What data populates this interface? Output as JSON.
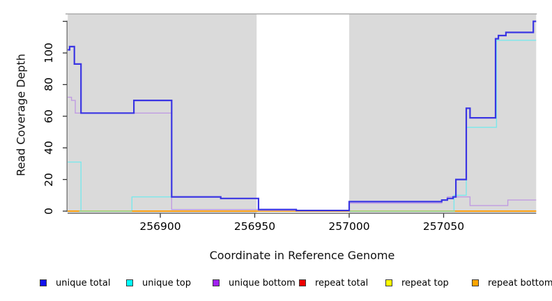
{
  "chart_data": {
    "type": "line",
    "subtype": "step-after",
    "title": "",
    "xlabel": "Coordinate in Reference Genome",
    "ylabel": "Read Coverage Depth",
    "xlim": [
      256851,
      257099
    ],
    "ylim": [
      0,
      126
    ],
    "grid": false,
    "legend_position": "bottom",
    "x_ticks": [
      256900,
      256950,
      257000,
      257050
    ],
    "x_tick_labels": [
      "256900",
      "256950",
      "257000",
      "257050"
    ],
    "y_ticks": [
      0,
      20,
      40,
      60,
      80,
      100
    ],
    "y_tick_labels": [
      "0",
      "20",
      "40",
      "60",
      "80",
      "100"
    ],
    "y_tick_unlabeled": 120,
    "background_bands": {
      "shade_color": "#DADADA",
      "shaded": [
        [
          256851,
          256951
        ],
        [
          257000,
          257099
        ]
      ],
      "unshaded": [
        [
          256951,
          257000
        ]
      ]
    },
    "series": [
      {
        "name": "unique total",
        "legend_color": "#1111EE",
        "line_color": "#3A35E3",
        "line_width": 2.2,
        "points": [
          [
            256851,
            102
          ],
          [
            256852,
            104
          ],
          [
            256854.5,
            93
          ],
          [
            256858,
            62
          ],
          [
            256886,
            70
          ],
          [
            256906,
            9
          ],
          [
            256932,
            8
          ],
          [
            256952,
            1
          ],
          [
            256972,
            0.4
          ],
          [
            257000,
            6
          ],
          [
            257049,
            7
          ],
          [
            257052,
            8
          ],
          [
            257055,
            9
          ],
          [
            257056.5,
            20
          ],
          [
            257062,
            65
          ],
          [
            257064,
            59
          ],
          [
            257077.5,
            109
          ],
          [
            257079,
            111
          ],
          [
            257083,
            113
          ],
          [
            257097.5,
            120
          ],
          [
            257099,
            120
          ]
        ]
      },
      {
        "name": "unique top",
        "legend_color": "#00FFFF",
        "line_color": "#7AE8EC",
        "line_width": 1.4,
        "points": [
          [
            256851,
            31
          ],
          [
            256858,
            0
          ],
          [
            256885,
            9
          ],
          [
            256932,
            8
          ],
          [
            256952,
            0
          ],
          [
            257055.5,
            10
          ],
          [
            257062,
            53
          ],
          [
            257078,
            108
          ],
          [
            257099,
            108
          ]
        ]
      },
      {
        "name": "unique bottom",
        "legend_color": "#A020F0",
        "line_color": "#C09BE2",
        "line_width": 1.4,
        "points": [
          [
            256851,
            72
          ],
          [
            256853,
            70
          ],
          [
            256855,
            62
          ],
          [
            256906,
            1
          ],
          [
            256952,
            0.5
          ],
          [
            257000,
            5
          ],
          [
            257049,
            7
          ],
          [
            257052,
            9
          ],
          [
            257064,
            3.5
          ],
          [
            257084,
            7
          ],
          [
            257099,
            7
          ]
        ]
      },
      {
        "name": "repeat total",
        "legend_color": "#EE0000",
        "line_color": "#EE0000",
        "line_width": 1.2,
        "points": [
          [
            256851,
            0
          ],
          [
            257099,
            0
          ]
        ]
      },
      {
        "name": "repeat top",
        "legend_color": "#FFFF00",
        "line_color": "#FFFF00",
        "line_width": 1.2,
        "points": [
          [
            256851,
            0
          ],
          [
            257099,
            0
          ]
        ]
      },
      {
        "name": "repeat bottom",
        "legend_color": "#FFA500",
        "line_color": "#FF9D00",
        "line_width": 1.8,
        "points": [
          [
            256851,
            0
          ],
          [
            257099,
            0
          ]
        ]
      }
    ],
    "zero_line_blend_segments": {
      "comment_color_is_cyan_yellow_overlap_appearing_green": "#96D996",
      "color": "#96D996",
      "ranges": [
        [
          256857,
          256885
        ],
        [
          257000,
          257056
        ]
      ]
    },
    "draw_order": [
      "repeat total",
      "repeat top",
      "unique top",
      "repeat bottom",
      "blend",
      "unique bottom",
      "unique total"
    ]
  }
}
